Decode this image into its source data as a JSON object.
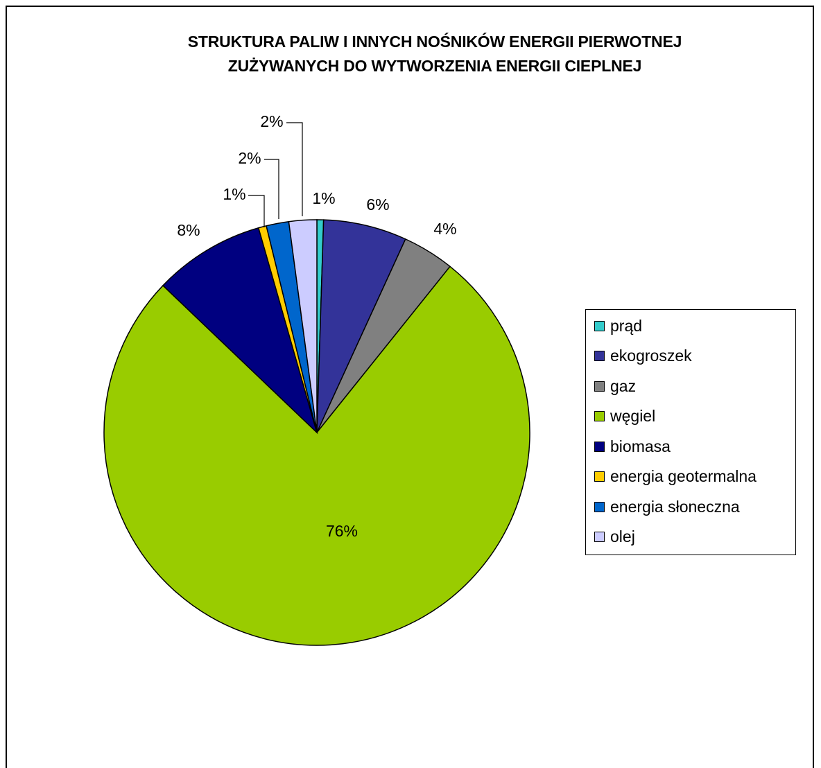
{
  "chart_data": {
    "type": "pie",
    "title": [
      "STRUKTURA PALIW I INNYCH NOŚNIKÓW ENERGII PIERWOTNEJ",
      "ZUŻYWANYCH DO WYTWORZENIA ENERGII CIEPLNEJ"
    ],
    "legend_position": "right",
    "slices": [
      {
        "label": "prąd",
        "value": 0.5,
        "display": "1%",
        "color": "#33cccc"
      },
      {
        "label": "ekogroszek",
        "value": 6.3,
        "display": "6%",
        "color": "#333399"
      },
      {
        "label": "gaz",
        "value": 3.9,
        "display": "4%",
        "color": "#808080"
      },
      {
        "label": "węgiel",
        "value": 76.0,
        "display": "76%",
        "color": "#99cc00"
      },
      {
        "label": "biomasa",
        "value": 8.4,
        "display": "8%",
        "color": "#000080"
      },
      {
        "label": "energia geotermalna",
        "value": 0.6,
        "display": "1%",
        "color": "#ffcc00"
      },
      {
        "label": "energia słoneczna",
        "value": 1.7,
        "display": "2%",
        "color": "#0066cc"
      },
      {
        "label": "olej",
        "value": 2.1,
        "display": "2%",
        "color": "#ccccff"
      }
    ]
  }
}
